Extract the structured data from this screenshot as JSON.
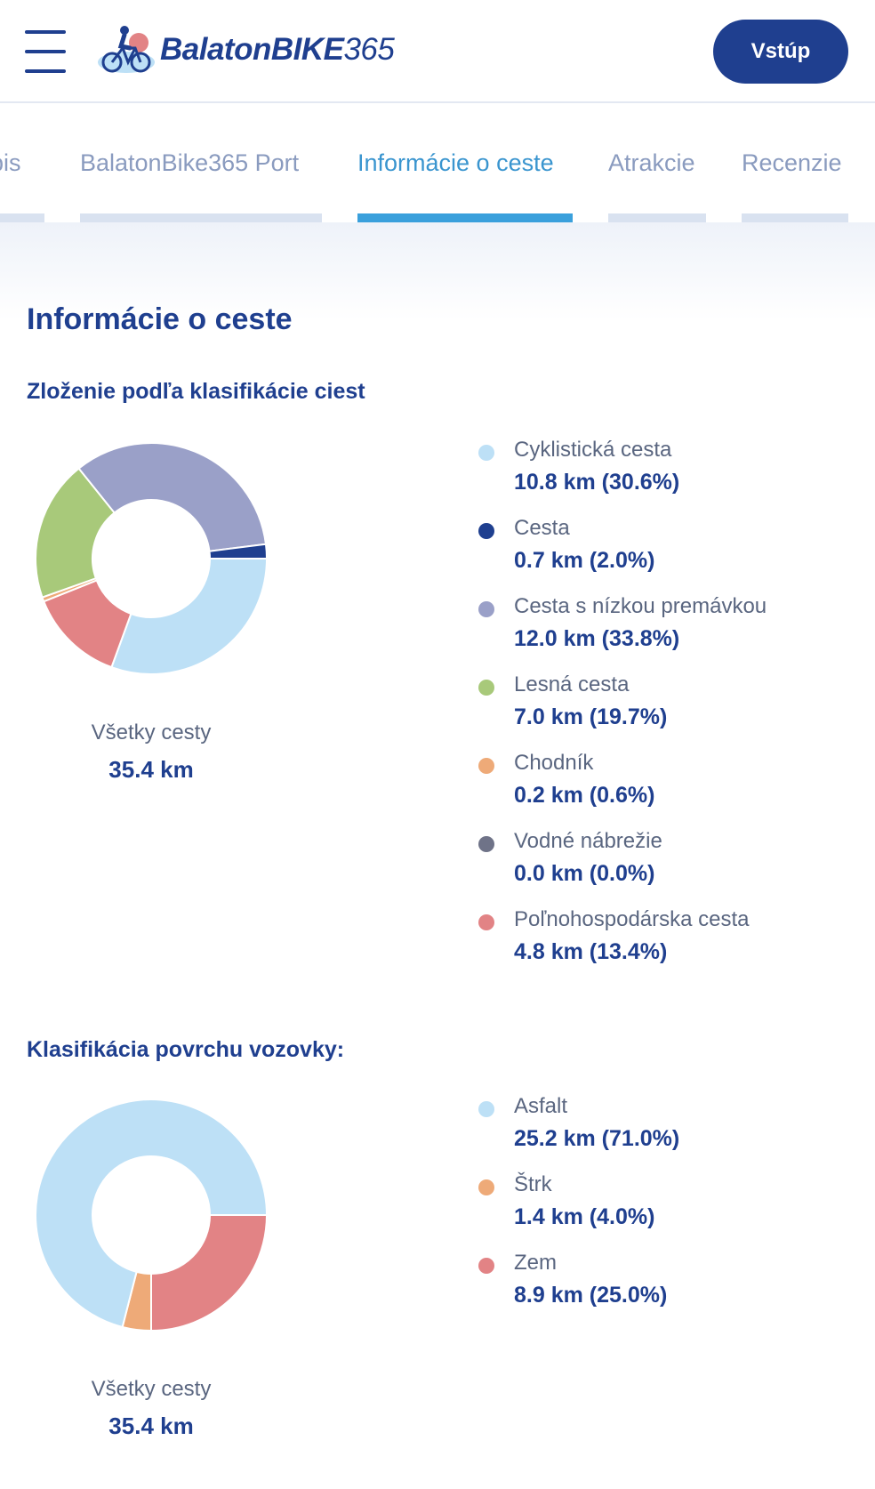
{
  "header": {
    "logo_text": "BalatonBIKE",
    "logo_number": "365",
    "login_label": "Vstúp"
  },
  "tabs": [
    {
      "label": "Popis",
      "active": false
    },
    {
      "label": "BalatonBike365 Port",
      "active": false
    },
    {
      "label": "Informácie o ceste",
      "active": true
    },
    {
      "label": "Atrakcie",
      "active": false
    },
    {
      "label": "Recenzie",
      "active": false
    }
  ],
  "main": {
    "title": "Informácie o ceste",
    "road_classification": {
      "title": "Zloženie podľa klasifikácie ciest",
      "total_label": "Všetky cesty",
      "total_value": "35.4 km",
      "items": [
        {
          "name": "Cyklistická cesta",
          "value": "10.8 km (30.6%)",
          "color": "#bde0f6"
        },
        {
          "name": "Cesta",
          "value": "0.7 km (2.0%)",
          "color": "#1f3f8f"
        },
        {
          "name": "Cesta s nízkou premávkou",
          "value": "12.0 km (33.8%)",
          "color": "#9aa0c8"
        },
        {
          "name": "Lesná cesta",
          "value": "7.0 km (19.7%)",
          "color": "#a8c97a"
        },
        {
          "name": "Chodník",
          "value": "0.2 km (0.6%)",
          "color": "#eeaa78"
        },
        {
          "name": "Vodné nábrežie",
          "value": "0.0 km (0.0%)",
          "color": "#6f7388"
        },
        {
          "name": "Poľnohospodárska cesta",
          "value": "4.8 km (13.4%)",
          "color": "#e28385"
        }
      ]
    },
    "surface_classification": {
      "title": "Klasifikácia povrchu vozovky:",
      "total_label": "Všetky cesty",
      "total_value": "35.4 km",
      "items": [
        {
          "name": "Asfalt",
          "value": "25.2 km (71.0%)",
          "color": "#bde0f6"
        },
        {
          "name": "Štrk",
          "value": "1.4 km (4.0%)",
          "color": "#eeaa78"
        },
        {
          "name": "Zem",
          "value": "8.9 km (25.0%)",
          "color": "#e28385"
        }
      ]
    }
  },
  "chart_data": [
    {
      "type": "pie",
      "title": "Zloženie podľa klasifikácie ciest",
      "categories": [
        "Cyklistická cesta",
        "Cesta",
        "Cesta s nízkou premávkou",
        "Lesná cesta",
        "Chodník",
        "Vodné nábrežie",
        "Poľnohospodárska cesta"
      ],
      "values": [
        30.6,
        2.0,
        33.8,
        19.7,
        0.6,
        0.0,
        13.4
      ],
      "km": [
        10.8,
        0.7,
        12.0,
        7.0,
        0.2,
        0.0,
        4.8
      ],
      "slice_order": [
        "Cyklistická cesta",
        "Poľnohospodárska cesta",
        "Chodník",
        "Lesná cesta",
        "Cesta s nízkou premávkou",
        "Cesta"
      ],
      "legend": "right"
    },
    {
      "type": "pie",
      "title": "Klasifikácia povrchu vozovky:",
      "categories": [
        "Asfalt",
        "Štrk",
        "Zem"
      ],
      "values": [
        71.0,
        4.0,
        25.0
      ],
      "km": [
        25.2,
        1.4,
        8.9
      ],
      "slice_order": [
        "Zem",
        "Štrk",
        "Asfalt"
      ],
      "legend": "right"
    }
  ]
}
